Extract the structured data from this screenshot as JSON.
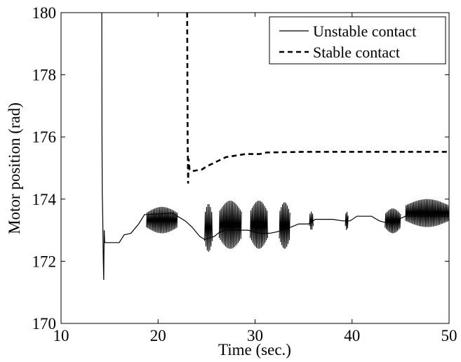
{
  "chart_data": {
    "type": "line",
    "title": "",
    "xlabel": "Time (sec.)",
    "ylabel": "Motor position (rad)",
    "xlim": [
      10,
      50
    ],
    "ylim": [
      170,
      180
    ],
    "xticks": [
      10,
      20,
      30,
      40,
      50
    ],
    "yticks": [
      170,
      172,
      174,
      176,
      178,
      180
    ],
    "grid": false,
    "legend_position": "top-right",
    "series": [
      {
        "name": "Unstable contact",
        "style": "solid",
        "color": "#000000",
        "points": [
          [
            14.2,
            180.0
          ],
          [
            14.22,
            176.0
          ],
          [
            14.25,
            174.2
          ],
          [
            14.3,
            173.4
          ],
          [
            14.35,
            172.1
          ],
          [
            14.4,
            171.4
          ],
          [
            14.45,
            173.0
          ],
          [
            14.5,
            172.6
          ],
          [
            14.6,
            172.6
          ],
          [
            16.0,
            172.6
          ],
          [
            16.5,
            172.85
          ],
          [
            17.2,
            172.9
          ],
          [
            18.0,
            173.2
          ],
          [
            18.6,
            173.5
          ],
          [
            21.5,
            173.55
          ],
          [
            22.0,
            173.45
          ],
          [
            22.8,
            173.3
          ],
          [
            23.5,
            173.1
          ],
          [
            24.3,
            172.8
          ],
          [
            24.8,
            172.7
          ],
          [
            25.3,
            172.75
          ],
          [
            25.8,
            172.8
          ],
          [
            26.4,
            172.95
          ],
          [
            27.0,
            173.0
          ],
          [
            28.0,
            173.0
          ],
          [
            29.3,
            173.0
          ],
          [
            29.8,
            172.95
          ],
          [
            30.6,
            172.9
          ],
          [
            31.5,
            172.9
          ],
          [
            32.3,
            172.95
          ],
          [
            32.8,
            173.0
          ],
          [
            33.7,
            173.1
          ],
          [
            34.5,
            173.2
          ],
          [
            35.5,
            173.2
          ],
          [
            36.2,
            173.35
          ],
          [
            38.0,
            173.35
          ],
          [
            39.0,
            173.3
          ],
          [
            39.8,
            173.3
          ],
          [
            40.5,
            173.45
          ],
          [
            42.0,
            173.45
          ],
          [
            42.8,
            173.3
          ],
          [
            43.4,
            173.25
          ],
          [
            44.0,
            173.3
          ],
          [
            44.8,
            173.35
          ],
          [
            45.5,
            173.45
          ],
          [
            46.0,
            173.45
          ],
          [
            50.0,
            173.45
          ]
        ],
        "oscillations": [
          {
            "t_start": 18.8,
            "t_end": 22.0,
            "low": 172.9,
            "high": 173.75
          },
          {
            "t_start": 24.8,
            "t_end": 25.6,
            "low": 172.3,
            "high": 173.85
          },
          {
            "t_start": 26.3,
            "t_end": 28.6,
            "low": 172.4,
            "high": 173.95
          },
          {
            "t_start": 29.5,
            "t_end": 31.3,
            "low": 172.4,
            "high": 173.95
          },
          {
            "t_start": 32.5,
            "t_end": 33.6,
            "low": 172.4,
            "high": 173.9
          },
          {
            "t_start": 35.6,
            "t_end": 36.0,
            "low": 173.0,
            "high": 173.6
          },
          {
            "t_start": 39.3,
            "t_end": 39.6,
            "low": 173.0,
            "high": 173.6
          },
          {
            "t_start": 43.4,
            "t_end": 45.0,
            "low": 172.9,
            "high": 173.7
          },
          {
            "t_start": 45.5,
            "t_end": 50.0,
            "low": 173.1,
            "high": 174.0
          }
        ]
      },
      {
        "name": "Stable contact",
        "style": "dashed",
        "color": "#000000",
        "points": [
          [
            23.0,
            180.0
          ],
          [
            23.05,
            176.0
          ],
          [
            23.1,
            174.5
          ],
          [
            23.15,
            175.3
          ],
          [
            23.25,
            174.95
          ],
          [
            23.5,
            174.9
          ],
          [
            24.5,
            174.95
          ],
          [
            25.0,
            175.05
          ],
          [
            26.0,
            175.2
          ],
          [
            27.0,
            175.35
          ],
          [
            28.0,
            175.4
          ],
          [
            29.0,
            175.45
          ],
          [
            30.5,
            175.45
          ],
          [
            31.2,
            175.5
          ],
          [
            35.0,
            175.52
          ],
          [
            40.0,
            175.52
          ],
          [
            50.0,
            175.52
          ]
        ]
      }
    ]
  }
}
